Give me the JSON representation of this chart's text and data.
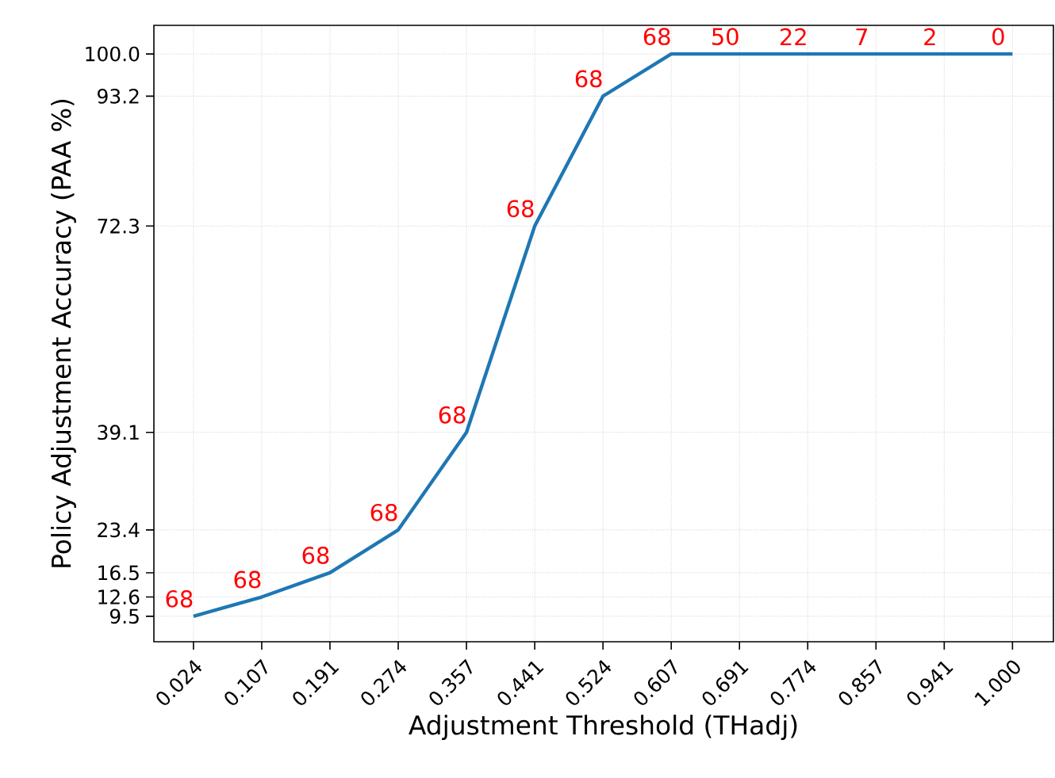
{
  "chart_data": {
    "type": "line",
    "xlabel": "Adjustment Threshold (THadj)",
    "ylabel": "Policy Adjustment Accuracy (PAA %)",
    "categories": [
      "0.024",
      "0.107",
      "0.191",
      "0.274",
      "0.357",
      "0.441",
      "0.524",
      "0.607",
      "0.691",
      "0.774",
      "0.857",
      "0.941",
      "1.000"
    ],
    "series": [
      {
        "color": "#1f77b4",
        "values": [
          9.5,
          12.6,
          16.5,
          23.4,
          39.1,
          72.3,
          93.2,
          100.0,
          100.0,
          100.0,
          100.0,
          100.0,
          100.0
        ]
      }
    ],
    "ylim": [
      5.4,
      104.6
    ],
    "yticks": [
      9.5,
      12.6,
      16.5,
      23.4,
      39.1,
      72.3,
      93.2,
      {
        "value": 100,
        "label": "100.0"
      }
    ],
    "grid": true,
    "marker": "none",
    "line_style": "solid",
    "annotations": [
      {
        "text": "68",
        "x": "0.024",
        "y": 9.5
      },
      {
        "text": "68",
        "x": "0.107",
        "y": 12.6
      },
      {
        "text": "68",
        "x": "0.191",
        "y": 16.5
      },
      {
        "text": "68",
        "x": "0.274",
        "y": 23.4
      },
      {
        "text": "68",
        "x": "0.357",
        "y": 39.1
      },
      {
        "text": "68",
        "x": "0.441",
        "y": 72.3
      },
      {
        "text": "68",
        "x": "0.524",
        "y": 93.2
      },
      {
        "text": "68",
        "x": "0.607",
        "y": 100.0
      },
      {
        "text": "50",
        "x": "0.691",
        "y": 100.0
      },
      {
        "text": "22",
        "x": "0.774",
        "y": 100.0
      },
      {
        "text": "7",
        "x": "0.857",
        "y": 100.0
      },
      {
        "text": "2",
        "x": "0.941",
        "y": 100.0
      },
      {
        "text": "0",
        "x": "1.000",
        "y": 100.0
      }
    ]
  }
}
